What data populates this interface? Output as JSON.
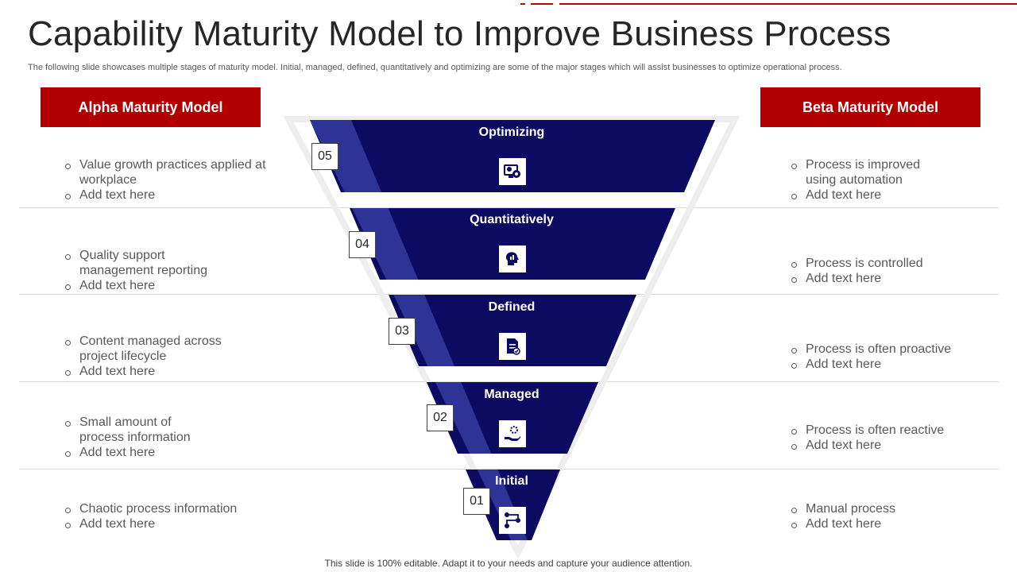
{
  "title": "Capability Maturity Model to Improve Business Process",
  "subtitle": "The following slide showcases multiple stages of maturity model. Initial, managed, defined, quantitatively and optimizing are some of the major stages which will assist businesses to optimize operational process.",
  "colors": {
    "accent": "#b20000",
    "funnel": "#0b0b61",
    "highlight": "#2e3496"
  },
  "alpha": {
    "header": "Alpha Maturity Model",
    "groups": [
      [
        "Value growth practices applied at workplace",
        "Add text here"
      ],
      [
        "Quality support management reporting",
        "Add text here"
      ],
      [
        "Content managed across project lifecycle",
        "Add text here"
      ],
      [
        "Small amount of process information",
        "Add text here"
      ],
      [
        "Chaotic process information",
        "Add text here"
      ]
    ]
  },
  "beta": {
    "header": "Beta Maturity Model",
    "groups": [
      [
        "Process is improved using automation",
        "Add text here"
      ],
      [
        "Process is controlled",
        "Add text here"
      ],
      [
        "Process is often proactive",
        "Add text here"
      ],
      [
        "Process is often reactive",
        "Add text here"
      ],
      [
        "Manual process",
        "Add text here"
      ]
    ]
  },
  "stages": [
    {
      "label": "Optimizing",
      "number": "05",
      "icon": "gears-monitor-icon"
    },
    {
      "label": "Quantitatively",
      "number": "04",
      "icon": "analytics-head-icon"
    },
    {
      "label": "Defined",
      "number": "03",
      "icon": "document-check-icon"
    },
    {
      "label": "Managed",
      "number": "02",
      "icon": "hand-gear-icon"
    },
    {
      "label": "Initial",
      "number": "01",
      "icon": "process-flow-icon"
    }
  ],
  "footer": "This slide is 100% editable. Adapt it to your  needs and capture your audience attention."
}
